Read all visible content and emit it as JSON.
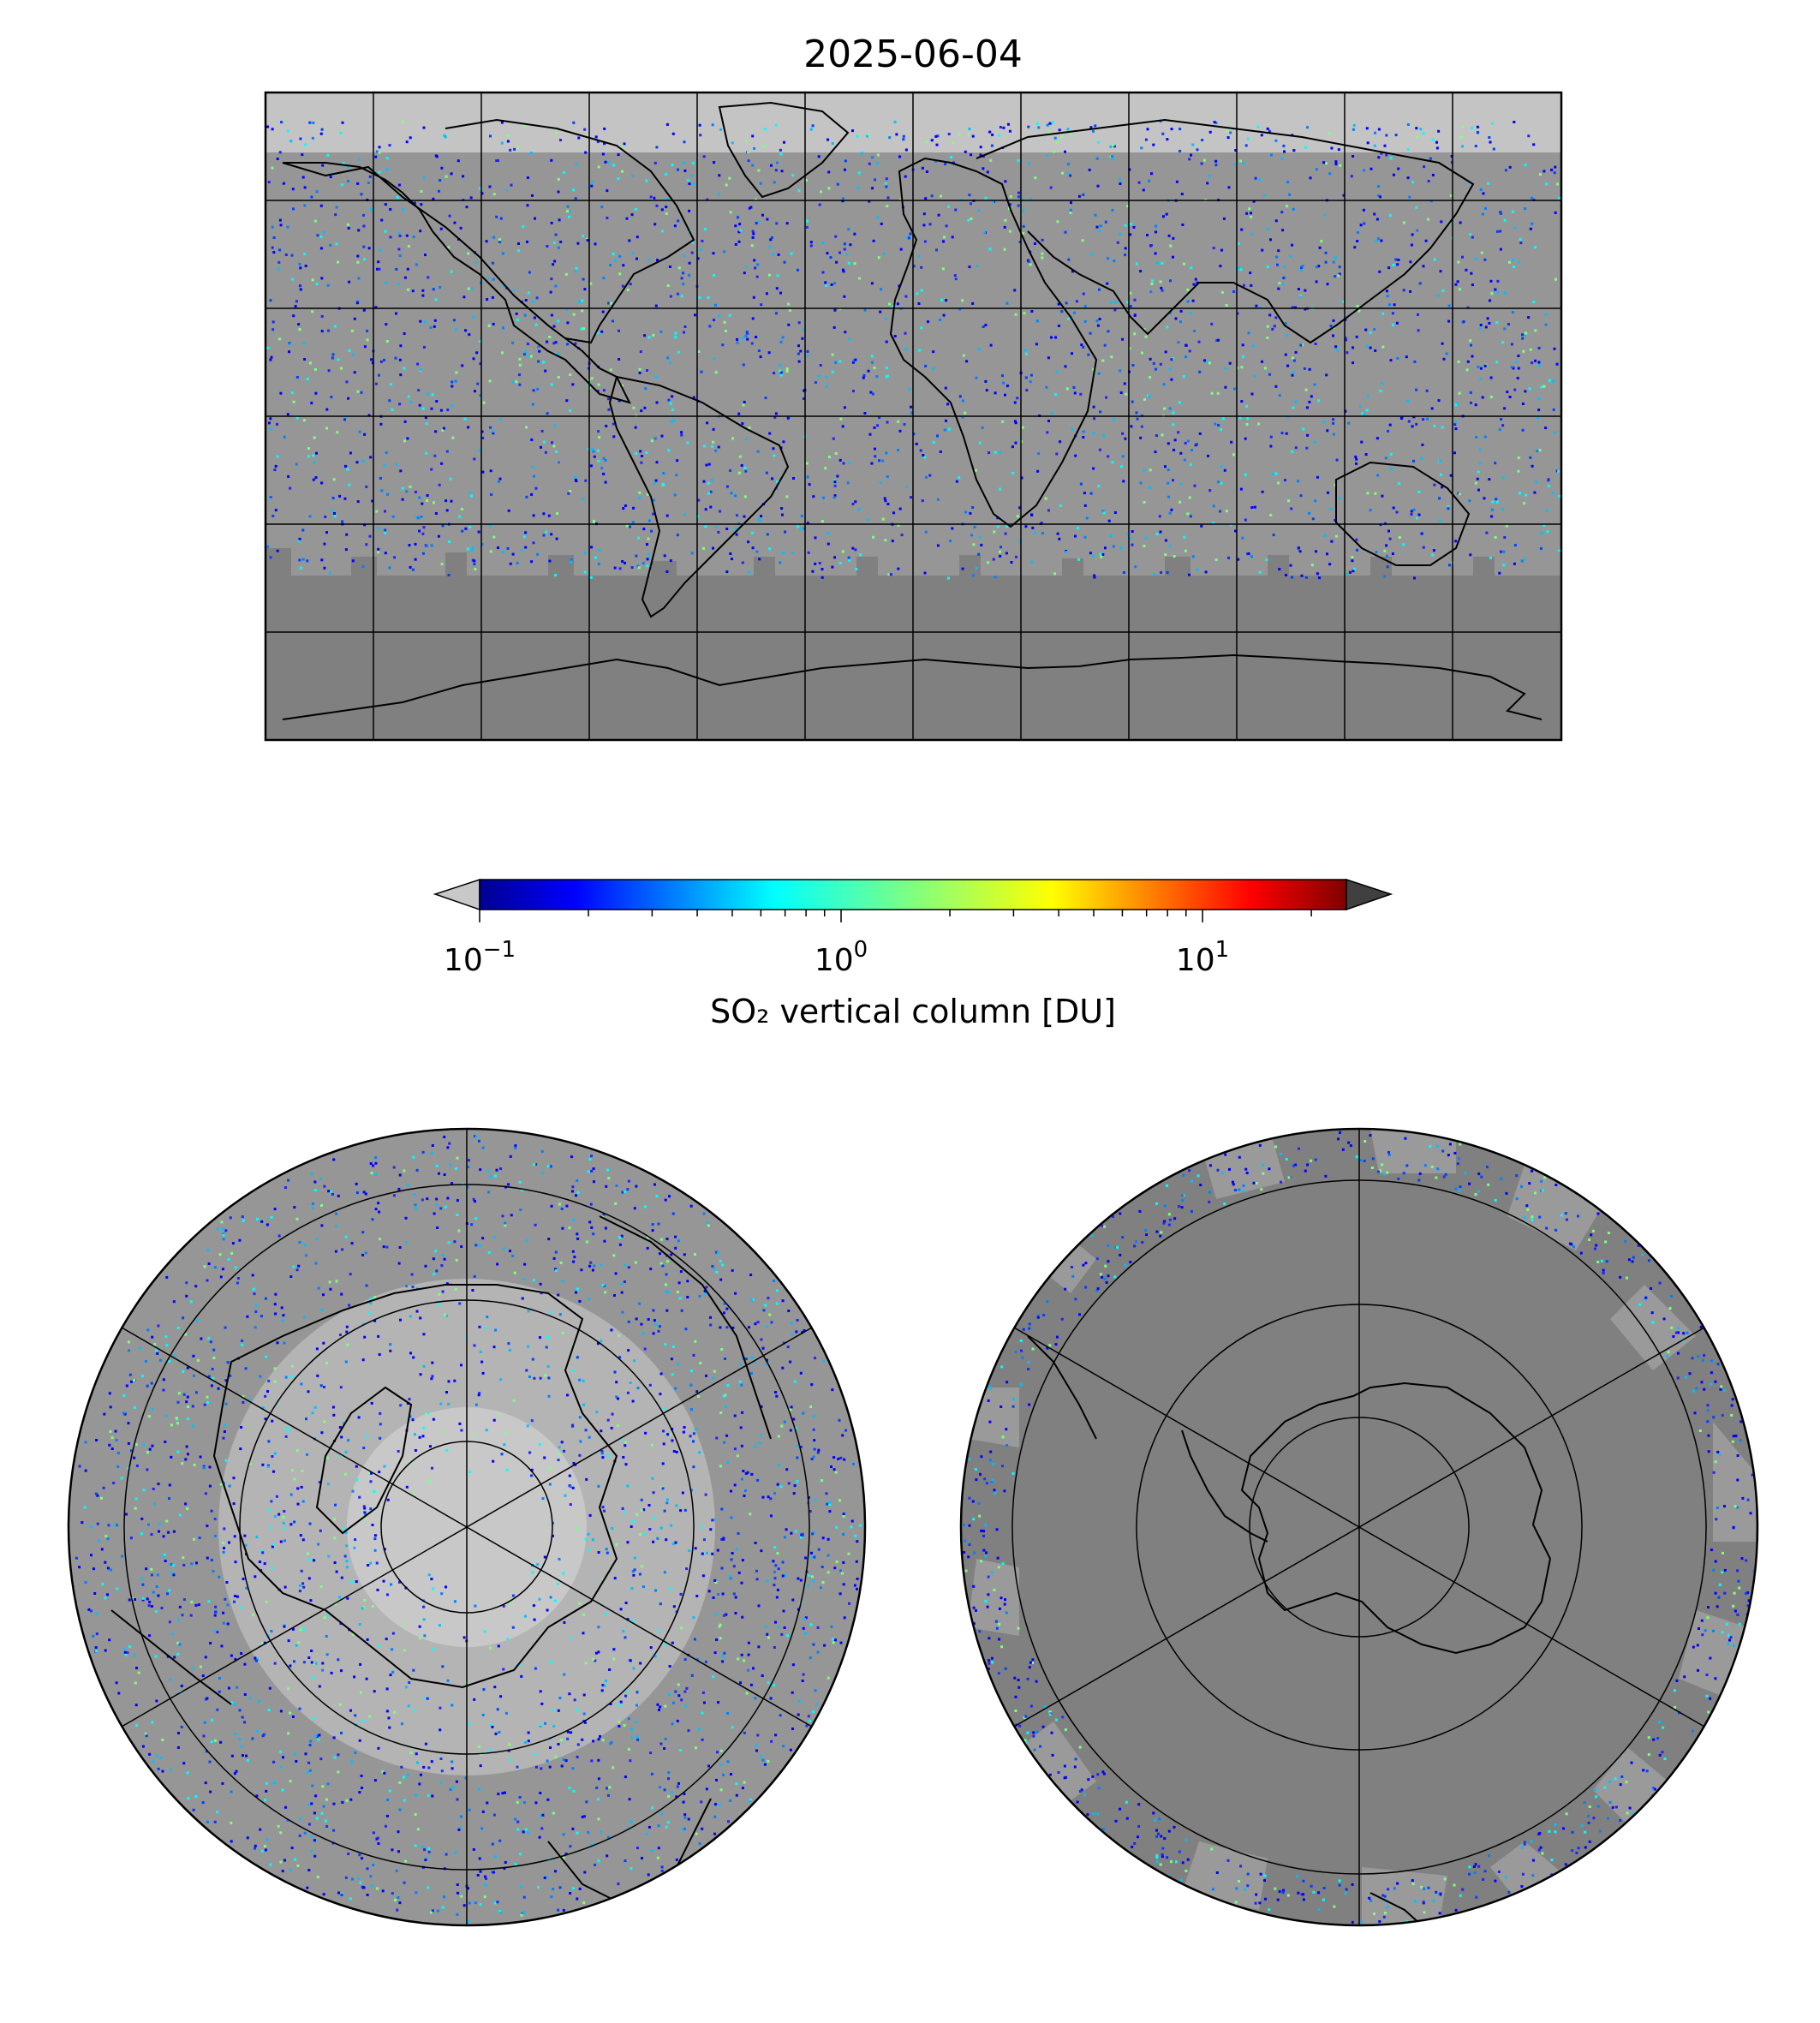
{
  "title": "2025-06-04",
  "colorbar": {
    "label": "SO₂ vertical column [DU]",
    "scale": "log",
    "range": [
      0.1,
      25
    ],
    "ticks": [
      {
        "base": "10",
        "exp": "−1",
        "value": 0.1
      },
      {
        "base": "10",
        "exp": "0",
        "value": 1
      },
      {
        "base": "10",
        "exp": "1",
        "value": 10
      }
    ],
    "colormap": [
      "#00008f",
      "#0000ff",
      "#0080ff",
      "#00ffff",
      "#80ff80",
      "#ffff00",
      "#ff8000",
      "#ff0000",
      "#800000"
    ],
    "under_color": "#c8c8c8",
    "over_color": "#404040",
    "no_data_color": "#808080",
    "land_outline_color": "#000000"
  },
  "maps": [
    {
      "name": "global-plate-carree",
      "projection": "PlateCarree",
      "gridlines": "30 degree"
    },
    {
      "name": "north-polar-stereo",
      "projection": "NorthPolarStereo",
      "gridlines": "parallels + 6 meridians"
    },
    {
      "name": "south-polar-stereo",
      "projection": "SouthPolarStereo",
      "gridlines": "parallels + 6 meridians"
    }
  ]
}
